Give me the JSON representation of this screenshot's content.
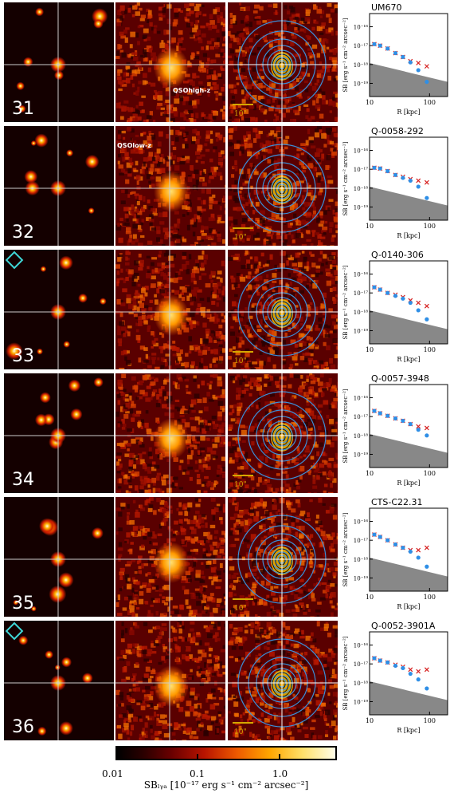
{
  "panels": [
    {
      "number": "31",
      "name": "UM670",
      "label_text": "QSOhigh-z",
      "diamond": false,
      "crosses": [
        1.2e-17,
        1e-17,
        7e-18,
        4e-18,
        2.5e-18,
        1.5e-18,
        1.2e-18,
        8e-19
      ],
      "dots": [
        1.2e-17,
        1e-17,
        7e-18,
        4e-18,
        2.5e-18,
        1.3e-18,
        5e-19,
        1.2e-19
      ]
    },
    {
      "number": "32",
      "name": "Q-0058-292",
      "label_text": "QSOlow-z",
      "diamond": false,
      "crosses": [
        1.2e-17,
        1.1e-17,
        8e-18,
        5e-18,
        4e-18,
        3e-18,
        2.5e-18,
        2e-18
      ],
      "dots": [
        1.2e-17,
        1.1e-17,
        8e-18,
        5e-18,
        3.5e-18,
        2.5e-18,
        1.2e-18,
        3e-19
      ]
    },
    {
      "number": "33",
      "name": "Q-0140-306",
      "label_text": "",
      "diamond": true,
      "crosses": [
        2e-17,
        1.5e-17,
        1e-17,
        8e-18,
        6e-18,
        4e-18,
        3e-18,
        2e-18
      ],
      "dots": [
        2e-17,
        1.5e-17,
        1e-17,
        7e-18,
        5e-18,
        3e-18,
        1.2e-18,
        4e-19
      ]
    },
    {
      "number": "34",
      "name": "Q-0057-3948",
      "label_text": "",
      "diamond": false,
      "crosses": [
        2e-17,
        1.5e-17,
        1.1e-17,
        8e-18,
        6e-18,
        4e-18,
        3e-18,
        2.5e-18
      ],
      "dots": [
        2e-17,
        1.5e-17,
        1.1e-17,
        8e-18,
        6e-18,
        4e-18,
        2e-18,
        1e-18
      ]
    },
    {
      "number": "35",
      "name": "CTS-C22.31",
      "label_text": "",
      "diamond": false,
      "crosses": [
        2e-17,
        1.5e-17,
        1e-17,
        6e-18,
        4e-18,
        3e-18,
        3e-18,
        4e-18
      ],
      "dots": [
        2e-17,
        1.5e-17,
        1e-17,
        6e-18,
        4e-18,
        2.5e-18,
        1.2e-18,
        4e-19
      ]
    },
    {
      "number": "36",
      "name": "Q-0052-3901A",
      "label_text": "",
      "diamond": true,
      "crosses": [
        2e-17,
        1.5e-17,
        1.2e-17,
        9e-18,
        7e-18,
        5e-18,
        4e-18,
        5e-18
      ],
      "dots": [
        2e-17,
        1.5e-17,
        1.2e-17,
        8e-18,
        6e-18,
        3e-18,
        1.5e-18,
        5e-19
      ]
    }
  ],
  "scale_label": "10\"",
  "plot_ylabel": "SB [erg s⁻¹ cm⁻² arcsec⁻²]",
  "plot_xlabel": "R [kpc]",
  "chart_data": {
    "type": "scatter",
    "x": [
      12,
      15,
      20,
      27,
      36,
      48,
      65,
      90
    ],
    "xticks": [
      "10",
      "100"
    ],
    "yticks": [
      "10⁻¹⁶",
      "10⁻¹⁷",
      "10⁻¹⁸",
      "10⁻¹⁹"
    ],
    "xlabel": "R [kpc]",
    "ylabel": "SB [erg s⁻¹ cm⁻² arcsec⁻²]",
    "xlim": [
      10,
      200
    ],
    "ylim": [
      2e-20,
      5e-16
    ],
    "xscale": "log",
    "yscale": "log"
  },
  "colorbar": {
    "ticks": [
      "0.01",
      "0.1",
      "1.0"
    ],
    "label": "SBₗᵧₐ [10⁻¹⁷ erg s⁻¹ cm⁻² arcsec⁻²]"
  },
  "colors": {
    "cross": "#d62020",
    "dot": "#2f8fe6",
    "ring": "#3a8fd8",
    "shade": "#888888",
    "diamond": "#3fd6d6"
  }
}
